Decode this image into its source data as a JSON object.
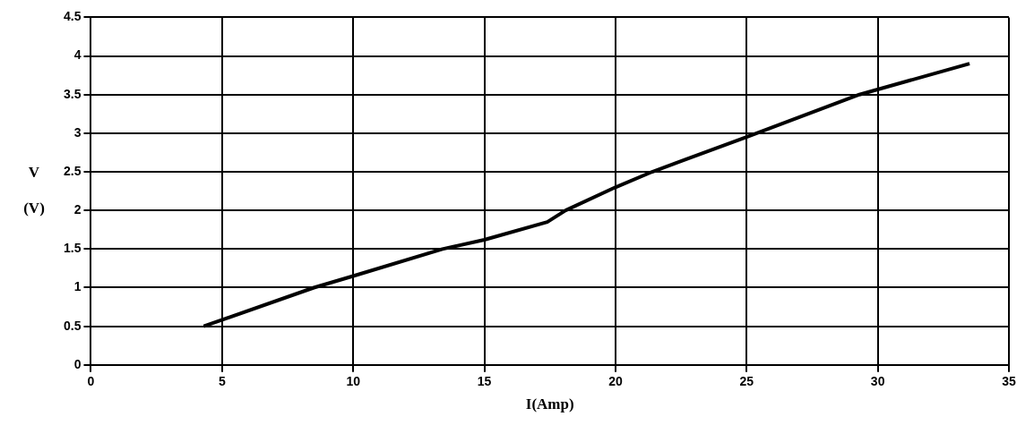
{
  "chart_data": {
    "type": "line",
    "xlabel": "I(Amp)",
    "ylabel": "V\n\n(V)",
    "series": [
      {
        "color": "#000000",
        "x": [
          4.3,
          8.5,
          10,
          13.4,
          15,
          17.4,
          18.1,
          20,
          21.4,
          25,
          29.3,
          33.5
        ],
        "values": [
          0.5,
          1.0,
          1.15,
          1.5,
          1.62,
          1.85,
          2.0,
          2.3,
          2.5,
          2.95,
          3.5,
          3.9
        ]
      }
    ],
    "xlim": [
      0,
      35
    ],
    "xticks": [
      0,
      5,
      10,
      15,
      20,
      25,
      30,
      35
    ],
    "ylim": [
      0,
      4.5
    ],
    "yticks": [
      0,
      0.5,
      1,
      1.5,
      2,
      2.5,
      3,
      3.5,
      4,
      4.5
    ],
    "grid": true,
    "legend": false,
    "marker": "none",
    "line_style": "solid"
  }
}
